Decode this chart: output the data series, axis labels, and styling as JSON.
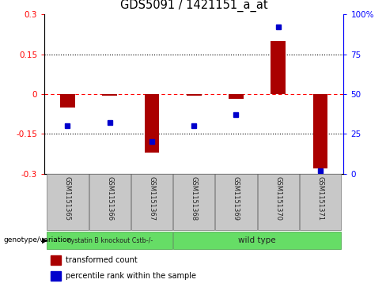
{
  "title": "GDS5091 / 1421151_a_at",
  "samples": [
    "GSM1151365",
    "GSM1151366",
    "GSM1151367",
    "GSM1151368",
    "GSM1151369",
    "GSM1151370",
    "GSM1151371"
  ],
  "red_values": [
    -0.05,
    -0.005,
    -0.22,
    -0.005,
    -0.018,
    0.2,
    -0.28
  ],
  "blue_percentiles": [
    30,
    32,
    20,
    30,
    37,
    92,
    2
  ],
  "ylim": [
    -0.3,
    0.3
  ],
  "y2lim": [
    0,
    100
  ],
  "yticks": [
    -0.3,
    -0.15,
    0,
    0.15,
    0.3
  ],
  "y2ticks": [
    0,
    25,
    50,
    75,
    100
  ],
  "ytick_labels": [
    "-0.3",
    "-0.15",
    "0",
    "0.15",
    "0.3"
  ],
  "y2tick_labels": [
    "0",
    "25",
    "50",
    "75",
    "100%"
  ],
  "bar_width": 0.35,
  "red_color": "#AA0000",
  "blue_color": "#0000CC",
  "group1_label": "cystatin B knockout Cstb-/-",
  "group2_label": "wild type",
  "green_color": "#66DD66",
  "legend_red_label": "transformed count",
  "legend_blue_label": "percentile rank within the sample",
  "bg_color": "#C8C8C8",
  "title_fontsize": 10.5
}
